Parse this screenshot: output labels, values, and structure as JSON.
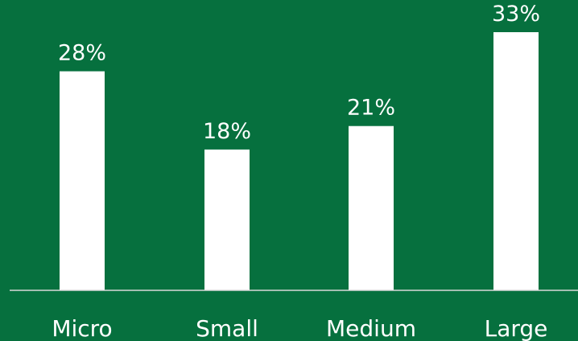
{
  "colors": {
    "background": "#06703E",
    "bar": "#FFFFFF",
    "text": "#FFFFFF",
    "axis": "#D9D9D9"
  },
  "chart_data": {
    "type": "bar",
    "categories": [
      "Micro",
      "Small",
      "Medium",
      "Large"
    ],
    "values": [
      28,
      18,
      21,
      33
    ],
    "data_labels": [
      "28%",
      "18%",
      "21%",
      "33%"
    ],
    "title": "",
    "xlabel": "",
    "ylabel": "",
    "ylim": [
      0,
      33
    ],
    "grid": false,
    "legend": "none"
  }
}
